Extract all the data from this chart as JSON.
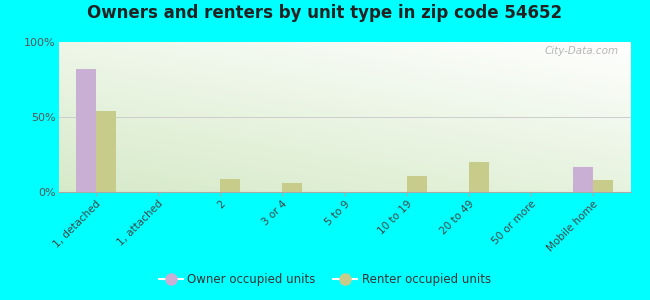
{
  "title": "Owners and renters by unit type in zip code 54652",
  "categories": [
    "1, detached",
    "1, attached",
    "2",
    "3 or 4",
    "5 to 9",
    "10 to 19",
    "20 to 49",
    "50 or more",
    "Mobile home"
  ],
  "owner_values": [
    82,
    0,
    0,
    0,
    0,
    0,
    0,
    0,
    17
  ],
  "renter_values": [
    54,
    0,
    9,
    6,
    0,
    11,
    20,
    0,
    8
  ],
  "owner_color": "#c9afd4",
  "renter_color": "#c8cc8a",
  "outer_bg": "#00ffff",
  "ylim": [
    0,
    100
  ],
  "yticks": [
    0,
    50,
    100
  ],
  "ytick_labels": [
    "0%",
    "50%",
    "100%"
  ],
  "watermark": "City-Data.com",
  "legend_owner": "Owner occupied units",
  "legend_renter": "Renter occupied units",
  "bar_width": 0.32,
  "title_fontsize": 12,
  "bg_colors": [
    "#d6eac8",
    "#eef7e8",
    "#f5faf2",
    "#ffffff"
  ],
  "bg_right_colors": [
    "#d8eee8",
    "#eaf5f0",
    "#f5faf8",
    "#ffffff"
  ]
}
